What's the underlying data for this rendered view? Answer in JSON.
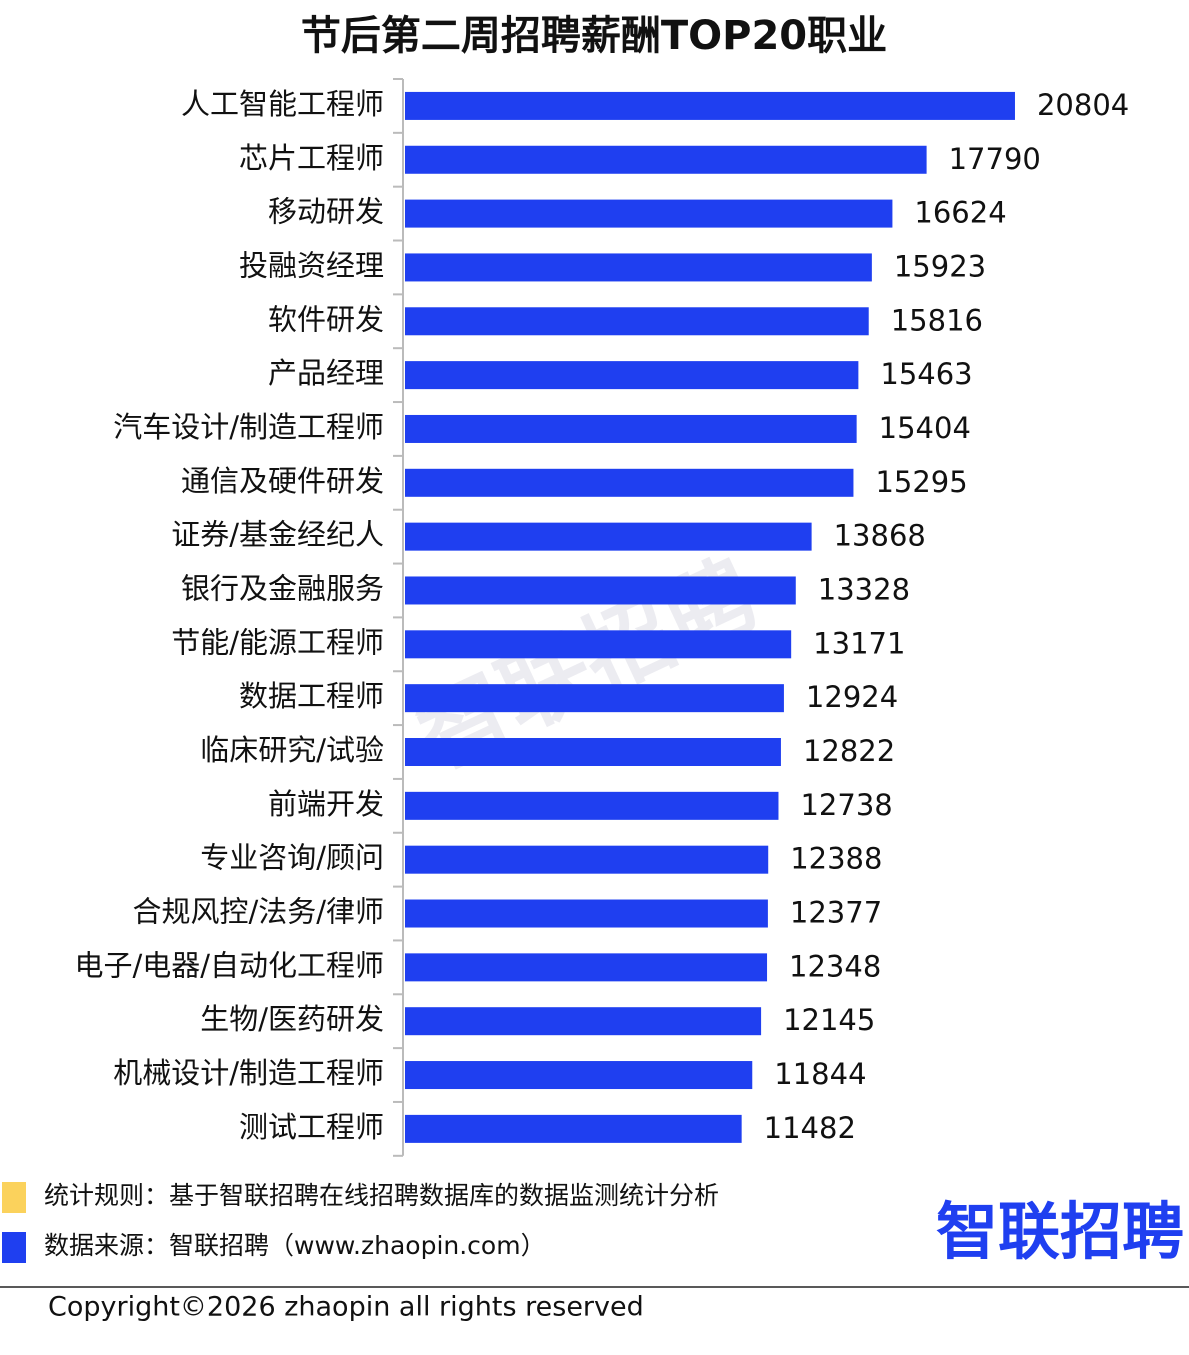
{
  "chart_data": {
    "type": "bar",
    "orientation": "horizontal",
    "title": "节后第二周招聘薪酬TOP20职业",
    "categories": [
      "人工智能工程师",
      "芯片工程师",
      "移动研发",
      "投融资经理",
      "软件研发",
      "产品经理",
      "汽车设计/制造工程师",
      "通信及硬件研发",
      "证券/基金经纪人",
      "银行及金融服务",
      "节能/能源工程师",
      "数据工程师",
      "临床研究/试验",
      "前端开发",
      "专业咨询/顾问",
      "合规风控/法务/律师",
      "电子/电器/自动化工程师",
      "生物/医药研发",
      "机械设计/制造工程师",
      "测试工程师"
    ],
    "values": [
      20804,
      17790,
      16624,
      15923,
      15816,
      15463,
      15404,
      15295,
      13868,
      13328,
      13171,
      12924,
      12822,
      12738,
      12388,
      12377,
      12348,
      12145,
      11844,
      11482
    ],
    "color": "#1f3ff0",
    "xlim": [
      0,
      25000
    ]
  },
  "footer": {
    "notes": [
      {
        "text": "统计规则：基于智联招聘在线招聘数据库的数据监测统计分析",
        "color": "#fbd25c"
      },
      {
        "text": "数据来源：智联招聘（www.zhaopin.com）",
        "color": "#1f3ff0"
      }
    ],
    "logo": "智联招聘",
    "copyright": "Copyright©2026 zhaopin all rights reserved"
  },
  "watermark": "智联招聘"
}
